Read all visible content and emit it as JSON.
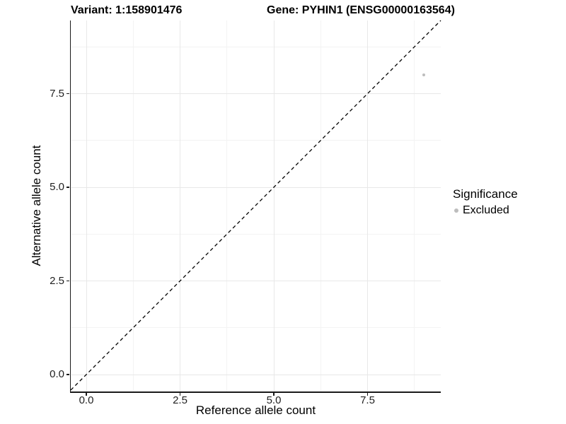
{
  "chart_data": {
    "type": "scatter",
    "title_left": "Variant: 1:158901476",
    "title_right": "Gene: PYHIN1 (ENSG00000163564)",
    "x_axis": {
      "label": "Reference allele count",
      "ticks": [
        {
          "v": 0.0,
          "label": "0.0"
        },
        {
          "v": 2.5,
          "label": "2.5"
        },
        {
          "v": 5.0,
          "label": "5.0"
        },
        {
          "v": 7.5,
          "label": "7.5"
        }
      ],
      "minor": [
        1.25,
        3.75,
        6.25,
        8.75
      ],
      "lim": [
        -0.45,
        9.45
      ]
    },
    "y_axis": {
      "label": "Alternative allele count",
      "ticks": [
        {
          "v": 0.0,
          "label": "0.0"
        },
        {
          "v": 2.5,
          "label": "2.5"
        },
        {
          "v": 5.0,
          "label": "5.0"
        },
        {
          "v": 7.5,
          "label": "7.5"
        }
      ],
      "minor": [
        1.25,
        3.75,
        6.25,
        8.75
      ],
      "lim": [
        -0.45,
        9.45
      ]
    },
    "grid": "major+minor",
    "reference_line": {
      "type": "identity",
      "style": "dashed",
      "color": "#000000"
    },
    "series": [
      {
        "name": "Excluded",
        "color": "#bdbdbd",
        "points": [
          {
            "x": 9,
            "y": 8
          }
        ]
      }
    ],
    "legend": {
      "title": "Significance",
      "position": "right",
      "entries": [
        {
          "label": "Excluded",
          "color": "#bdbdbd"
        }
      ]
    }
  },
  "colors": {
    "grid_major": "#e8e8e8",
    "grid_minor": "#f3f3f3",
    "axis_line": "#1a1a1a",
    "point": "#bdbdbd"
  }
}
